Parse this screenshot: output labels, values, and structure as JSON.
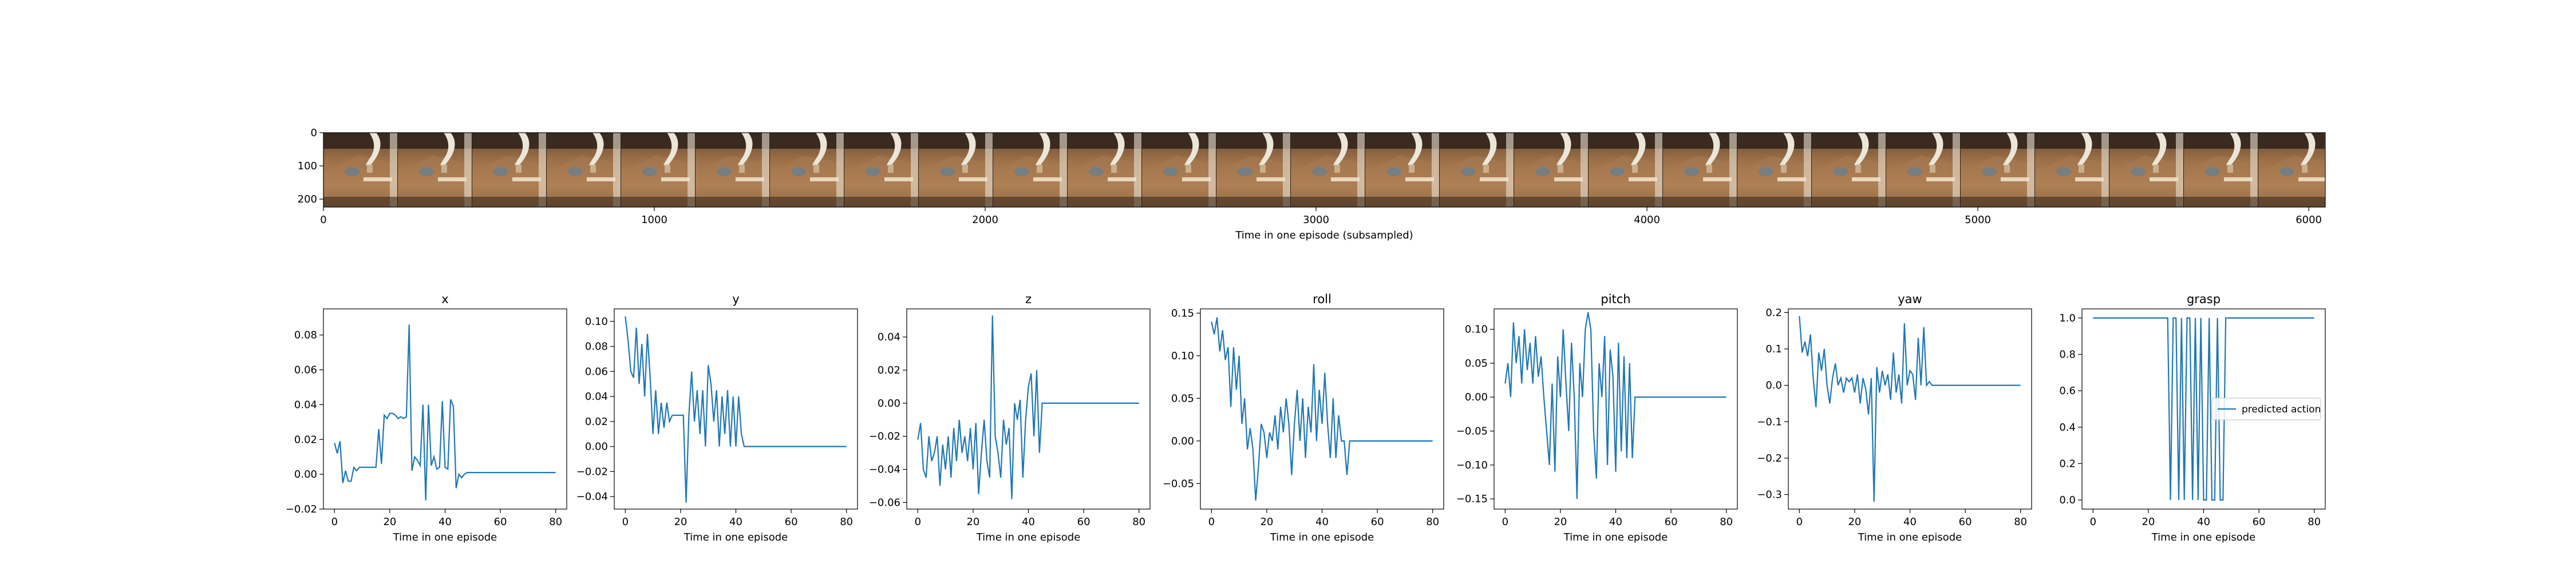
{
  "filmstrip": {
    "xlabel": "Time in one episode (subsampled)",
    "xticks": [
      0,
      1000,
      2000,
      3000,
      4000,
      5000,
      6000
    ],
    "yticks": [
      0,
      100,
      200
    ],
    "xlim": [
      0,
      6050
    ],
    "ylim": [
      0,
      224
    ],
    "frames": 27
  },
  "chart_data": [
    {
      "type": "line",
      "title": "x",
      "xlabel": "Time in one episode",
      "xlim": [
        -4,
        84
      ],
      "ylim": [
        -0.02,
        0.095
      ],
      "xticks": [
        0,
        20,
        40,
        60,
        80
      ],
      "yticks": [
        -0.02,
        0.0,
        0.02,
        0.04,
        0.06,
        0.08
      ],
      "yticklabels": [
        "−0.02",
        "0.00",
        "0.02",
        "0.04",
        "0.06",
        "0.08"
      ],
      "color": "#1f77b4",
      "series": [
        {
          "x": [
            0,
            1,
            2,
            3,
            4,
            5,
            6,
            7,
            8,
            9,
            10,
            11,
            12,
            13,
            14,
            15,
            16,
            17,
            18,
            19,
            20,
            21,
            22,
            23,
            24,
            25,
            26,
            27,
            28,
            29,
            30,
            31,
            32,
            33,
            34,
            35,
            36,
            37,
            38,
            39,
            40,
            41,
            42,
            43,
            44,
            45,
            46,
            47,
            48,
            49,
            50,
            80
          ],
          "values": [
            0.018,
            0.012,
            0.019,
            -0.005,
            0.002,
            -0.004,
            -0.004,
            0.004,
            0.002,
            0.004,
            0.004,
            0.004,
            0.004,
            0.004,
            0.004,
            0.004,
            0.026,
            0.006,
            0.034,
            0.032,
            0.035,
            0.035,
            0.034,
            0.032,
            0.033,
            0.032,
            0.033,
            0.086,
            0.002,
            0.01,
            0.008,
            0.005,
            0.04,
            -0.015,
            0.04,
            0.005,
            0.01,
            0.003,
            0.004,
            0.042,
            0.004,
            0.003,
            0.043,
            0.039,
            -0.008,
            0.0,
            -0.002,
            0.0,
            0.001,
            0.001,
            0.001,
            0.001
          ]
        }
      ]
    },
    {
      "type": "line",
      "title": "y",
      "xlabel": "Time in one episode",
      "xlim": [
        -4,
        84
      ],
      "ylim": [
        -0.05,
        0.11
      ],
      "xticks": [
        0,
        20,
        40,
        60,
        80
      ],
      "yticks": [
        -0.04,
        -0.02,
        0.0,
        0.02,
        0.04,
        0.06,
        0.08,
        0.1
      ],
      "yticklabels": [
        "−0.04",
        "−0.02",
        "0.00",
        "0.02",
        "0.04",
        "0.06",
        "0.08",
        "0.10"
      ],
      "color": "#1f77b4",
      "series": [
        {
          "x": [
            0,
            1,
            2,
            3,
            4,
            5,
            6,
            7,
            8,
            9,
            10,
            11,
            12,
            13,
            14,
            15,
            16,
            17,
            18,
            19,
            20,
            21,
            22,
            23,
            24,
            25,
            26,
            27,
            28,
            29,
            30,
            31,
            32,
            33,
            34,
            35,
            36,
            37,
            38,
            39,
            40,
            41,
            42,
            43,
            44,
            45,
            46,
            47,
            48,
            49,
            50,
            80
          ],
          "values": [
            0.104,
            0.085,
            0.06,
            0.055,
            0.095,
            0.05,
            0.082,
            0.04,
            0.09,
            0.055,
            0.01,
            0.045,
            0.01,
            0.035,
            0.015,
            0.035,
            0.02,
            0.025,
            0.025,
            0.025,
            0.025,
            0.025,
            -0.045,
            0.025,
            0.06,
            0.02,
            0.045,
            0.01,
            0.045,
            0.0,
            0.065,
            0.05,
            0.02,
            0.045,
            0.0,
            0.04,
            0.01,
            0.045,
            0.0,
            0.04,
            0.0,
            0.04,
            0.01,
            0.0,
            0.0,
            0.0,
            0.0,
            0.0,
            0.0,
            0.0,
            0.0,
            0.0
          ]
        }
      ]
    },
    {
      "type": "line",
      "title": "z",
      "xlabel": "Time in one episode",
      "xlim": [
        -4,
        84
      ],
      "ylim": [
        -0.064,
        0.057
      ],
      "xticks": [
        0,
        20,
        40,
        60,
        80
      ],
      "yticks": [
        -0.06,
        -0.04,
        -0.02,
        0.0,
        0.02,
        0.04
      ],
      "yticklabels": [
        "−0.06",
        "−0.04",
        "−0.02",
        "0.00",
        "0.02",
        "0.04"
      ],
      "color": "#1f77b4",
      "series": [
        {
          "x": [
            0,
            1,
            2,
            3,
            4,
            5,
            6,
            7,
            8,
            9,
            10,
            11,
            12,
            13,
            14,
            15,
            16,
            17,
            18,
            19,
            20,
            21,
            22,
            23,
            24,
            25,
            26,
            27,
            28,
            29,
            30,
            31,
            32,
            33,
            34,
            35,
            36,
            37,
            38,
            39,
            40,
            41,
            42,
            43,
            44,
            45,
            46,
            47,
            48,
            49,
            50,
            80
          ],
          "values": [
            -0.022,
            -0.012,
            -0.04,
            -0.045,
            -0.02,
            -0.035,
            -0.03,
            -0.02,
            -0.05,
            -0.025,
            -0.04,
            -0.02,
            -0.045,
            -0.015,
            -0.035,
            -0.01,
            -0.03,
            -0.02,
            -0.035,
            -0.015,
            -0.04,
            -0.012,
            -0.055,
            -0.03,
            -0.01,
            -0.035,
            -0.045,
            0.053,
            -0.02,
            -0.03,
            -0.045,
            -0.01,
            -0.025,
            -0.015,
            -0.058,
            0.0,
            -0.01,
            0.002,
            -0.045,
            -0.01,
            0.01,
            0.018,
            -0.02,
            0.02,
            -0.03,
            0.0,
            0.0,
            0.0,
            0.0,
            0.0,
            0.0,
            0.0
          ]
        }
      ]
    },
    {
      "type": "line",
      "title": "roll",
      "xlabel": "Time in one episode",
      "xlim": [
        -4,
        84
      ],
      "ylim": [
        -0.08,
        0.155
      ],
      "xticks": [
        0,
        20,
        40,
        60,
        80
      ],
      "yticks": [
        -0.05,
        0.0,
        0.05,
        0.1,
        0.15
      ],
      "yticklabels": [
        "−0.05",
        "0.00",
        "0.05",
        "0.10",
        "0.15"
      ],
      "color": "#1f77b4",
      "series": [
        {
          "x": [
            0,
            1,
            2,
            3,
            4,
            5,
            6,
            7,
            8,
            9,
            10,
            11,
            12,
            13,
            14,
            15,
            16,
            17,
            18,
            19,
            20,
            21,
            22,
            23,
            24,
            25,
            26,
            27,
            28,
            29,
            30,
            31,
            32,
            33,
            34,
            35,
            36,
            37,
            38,
            39,
            40,
            41,
            42,
            43,
            44,
            45,
            46,
            47,
            48,
            49,
            50,
            80
          ],
          "values": [
            0.14,
            0.125,
            0.145,
            0.105,
            0.13,
            0.095,
            0.11,
            0.04,
            0.11,
            0.06,
            0.1,
            0.02,
            0.05,
            -0.01,
            0.015,
            -0.01,
            -0.07,
            -0.03,
            0.02,
            0.01,
            -0.02,
            0.01,
            0.0,
            0.03,
            -0.01,
            0.04,
            0.01,
            0.05,
            0.02,
            -0.04,
            0.02,
            0.06,
            0.0,
            0.05,
            -0.02,
            0.04,
            0.01,
            0.09,
            0.0,
            0.06,
            0.02,
            0.08,
            0.02,
            -0.02,
            0.05,
            -0.02,
            0.03,
            0.0,
            0.0,
            -0.04,
            0.0,
            0.0
          ]
        }
      ]
    },
    {
      "type": "line",
      "title": "pitch",
      "xlabel": "Time in one episode",
      "xlim": [
        -4,
        84
      ],
      "ylim": [
        -0.165,
        0.13
      ],
      "xticks": [
        0,
        20,
        40,
        60,
        80
      ],
      "yticks": [
        -0.15,
        -0.1,
        -0.05,
        0.0,
        0.05,
        0.1
      ],
      "yticklabels": [
        "−0.15",
        "−0.10",
        "−0.05",
        "0.00",
        "0.05",
        "0.10"
      ],
      "color": "#1f77b4",
      "series": [
        {
          "x": [
            0,
            1,
            2,
            3,
            4,
            5,
            6,
            7,
            8,
            9,
            10,
            11,
            12,
            13,
            14,
            15,
            16,
            17,
            18,
            19,
            20,
            21,
            22,
            23,
            24,
            25,
            26,
            27,
            28,
            29,
            30,
            31,
            32,
            33,
            34,
            35,
            36,
            37,
            38,
            39,
            40,
            41,
            42,
            43,
            44,
            45,
            46,
            47,
            48,
            49,
            50,
            80
          ],
          "values": [
            0.02,
            0.05,
            0.0,
            0.11,
            0.05,
            0.09,
            0.02,
            0.1,
            0.04,
            0.08,
            0.02,
            0.09,
            0.03,
            0.06,
            0.0,
            -0.05,
            -0.1,
            0.02,
            -0.11,
            0.06,
            0.0,
            0.1,
            0.02,
            -0.05,
            0.08,
            0.0,
            -0.15,
            0.05,
            0.0,
            0.1,
            0.125,
            0.1,
            -0.05,
            -0.12,
            0.05,
            0.0,
            0.09,
            -0.1,
            0.07,
            0.03,
            -0.11,
            0.08,
            -0.08,
            0.06,
            -0.09,
            0.05,
            -0.09,
            0.0,
            0.0,
            0.0,
            0.0,
            0.0
          ]
        }
      ]
    },
    {
      "type": "line",
      "title": "yaw",
      "xlabel": "Time in one episode",
      "xlim": [
        -4,
        84
      ],
      "ylim": [
        -0.34,
        0.21
      ],
      "xticks": [
        0,
        20,
        40,
        60,
        80
      ],
      "yticks": [
        -0.3,
        -0.2,
        -0.1,
        0.0,
        0.1,
        0.2
      ],
      "yticklabels": [
        "−0.3",
        "−0.2",
        "−0.1",
        "0.0",
        "0.1",
        "0.2"
      ],
      "color": "#1f77b4",
      "series": [
        {
          "x": [
            0,
            1,
            2,
            3,
            4,
            5,
            6,
            7,
            8,
            9,
            10,
            11,
            12,
            13,
            14,
            15,
            16,
            17,
            18,
            19,
            20,
            21,
            22,
            23,
            24,
            25,
            26,
            27,
            28,
            29,
            30,
            31,
            32,
            33,
            34,
            35,
            36,
            37,
            38,
            39,
            40,
            41,
            42,
            43,
            44,
            45,
            46,
            47,
            48,
            49,
            50,
            80
          ],
          "values": [
            0.19,
            0.09,
            0.12,
            0.08,
            0.14,
            0.02,
            -0.06,
            0.09,
            0.04,
            0.1,
            0.0,
            -0.05,
            0.02,
            0.06,
            0.0,
            0.02,
            -0.02,
            0.02,
            0.01,
            0.02,
            -0.02,
            0.03,
            -0.05,
            0.02,
            -0.01,
            -0.08,
            0.02,
            -0.32,
            0.05,
            -0.02,
            0.04,
            0.0,
            0.03,
            -0.04,
            0.09,
            -0.02,
            0.03,
            -0.05,
            0.17,
            0.0,
            0.04,
            0.03,
            -0.04,
            0.13,
            0.0,
            0.16,
            0.0,
            0.01,
            0.0,
            0.0,
            0.0,
            0.0
          ]
        }
      ]
    },
    {
      "type": "line",
      "title": "grasp",
      "xlabel": "Time in one episode",
      "xlim": [
        -4,
        84
      ],
      "ylim": [
        -0.05,
        1.05
      ],
      "xticks": [
        0,
        20,
        40,
        60,
        80
      ],
      "yticks": [
        0.0,
        0.2,
        0.4,
        0.6,
        0.8,
        1.0
      ],
      "yticklabels": [
        "0.0",
        "0.2",
        "0.4",
        "0.6",
        "0.8",
        "1.0"
      ],
      "color": "#1f77b4",
      "legend": {
        "label": "predicted action",
        "position": "center-right"
      },
      "series": [
        {
          "name": "predicted action",
          "x": [
            0,
            27,
            28,
            29,
            30,
            31,
            32,
            33,
            34,
            35,
            36,
            37,
            38,
            39,
            40,
            41,
            42,
            43,
            44,
            45,
            46,
            47,
            48,
            49,
            80
          ],
          "values": [
            1,
            1,
            0,
            1,
            1,
            0,
            1,
            0,
            1,
            1,
            0,
            1,
            0,
            1,
            0,
            0,
            1,
            0,
            0,
            1,
            0,
            0,
            1,
            1,
            1
          ]
        }
      ]
    }
  ]
}
